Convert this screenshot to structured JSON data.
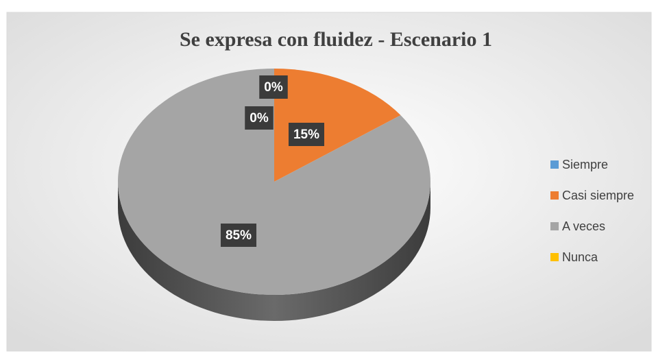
{
  "chart_data": {
    "type": "pie",
    "title": "Se expresa con fluidez - Escenario 1",
    "categories": [
      "Siempre",
      "Casi siempre",
      "A veces",
      "Nunca"
    ],
    "values": [
      0,
      15,
      85,
      0
    ],
    "value_labels": [
      "0%",
      "15%",
      "85%",
      "0%"
    ],
    "colors": [
      "#5b9bd5",
      "#ed7d31",
      "#a5a5a5",
      "#ffc000"
    ],
    "legend": "right"
  }
}
